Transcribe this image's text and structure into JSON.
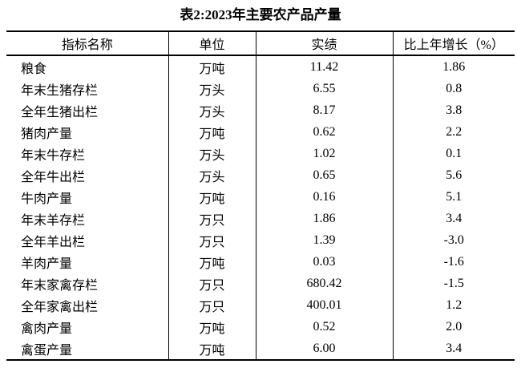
{
  "title": "表2:2023年主要农产品产量",
  "colors": {
    "background": "#ffffff",
    "text": "#000000",
    "border": "#000000"
  },
  "table": {
    "columns": [
      "指标名称",
      "单位",
      "实绩",
      "比上年增长（%）"
    ],
    "rows": [
      {
        "indicator": "粮食",
        "unit": "万吨",
        "actual": "11.42",
        "growth": "1.86"
      },
      {
        "indicator": "年末生猪存栏",
        "unit": "万头",
        "actual": "6.55",
        "growth": "0.8"
      },
      {
        "indicator": "全年生猪出栏",
        "unit": "万头",
        "actual": "8.17",
        "growth": "3.8"
      },
      {
        "indicator": "猪肉产量",
        "unit": "万吨",
        "actual": "0.62",
        "growth": "2.2"
      },
      {
        "indicator": "年末牛存栏",
        "unit": "万头",
        "actual": "1.02",
        "growth": "0.1"
      },
      {
        "indicator": "全年牛出栏",
        "unit": "万头",
        "actual": "0.65",
        "growth": "5.6"
      },
      {
        "indicator": "牛肉产量",
        "unit": "万吨",
        "actual": "0.16",
        "growth": "5.1"
      },
      {
        "indicator": "年末羊存栏",
        "unit": "万只",
        "actual": "1.86",
        "growth": "3.4"
      },
      {
        "indicator": "全年羊出栏",
        "unit": "万只",
        "actual": "1.39",
        "growth": "-3.0"
      },
      {
        "indicator": "羊肉产量",
        "unit": "万吨",
        "actual": "0.03",
        "growth": "-1.6"
      },
      {
        "indicator": "年末家禽存栏",
        "unit": "万只",
        "actual": "680.42",
        "growth": "-1.5"
      },
      {
        "indicator": "全年家禽出栏",
        "unit": "万只",
        "actual": "400.01",
        "growth": "1.2"
      },
      {
        "indicator": "禽肉产量",
        "unit": "万吨",
        "actual": "0.52",
        "growth": "2.0"
      },
      {
        "indicator": "禽蛋产量",
        "unit": "万吨",
        "actual": "6.00",
        "growth": "3.4"
      }
    ]
  }
}
